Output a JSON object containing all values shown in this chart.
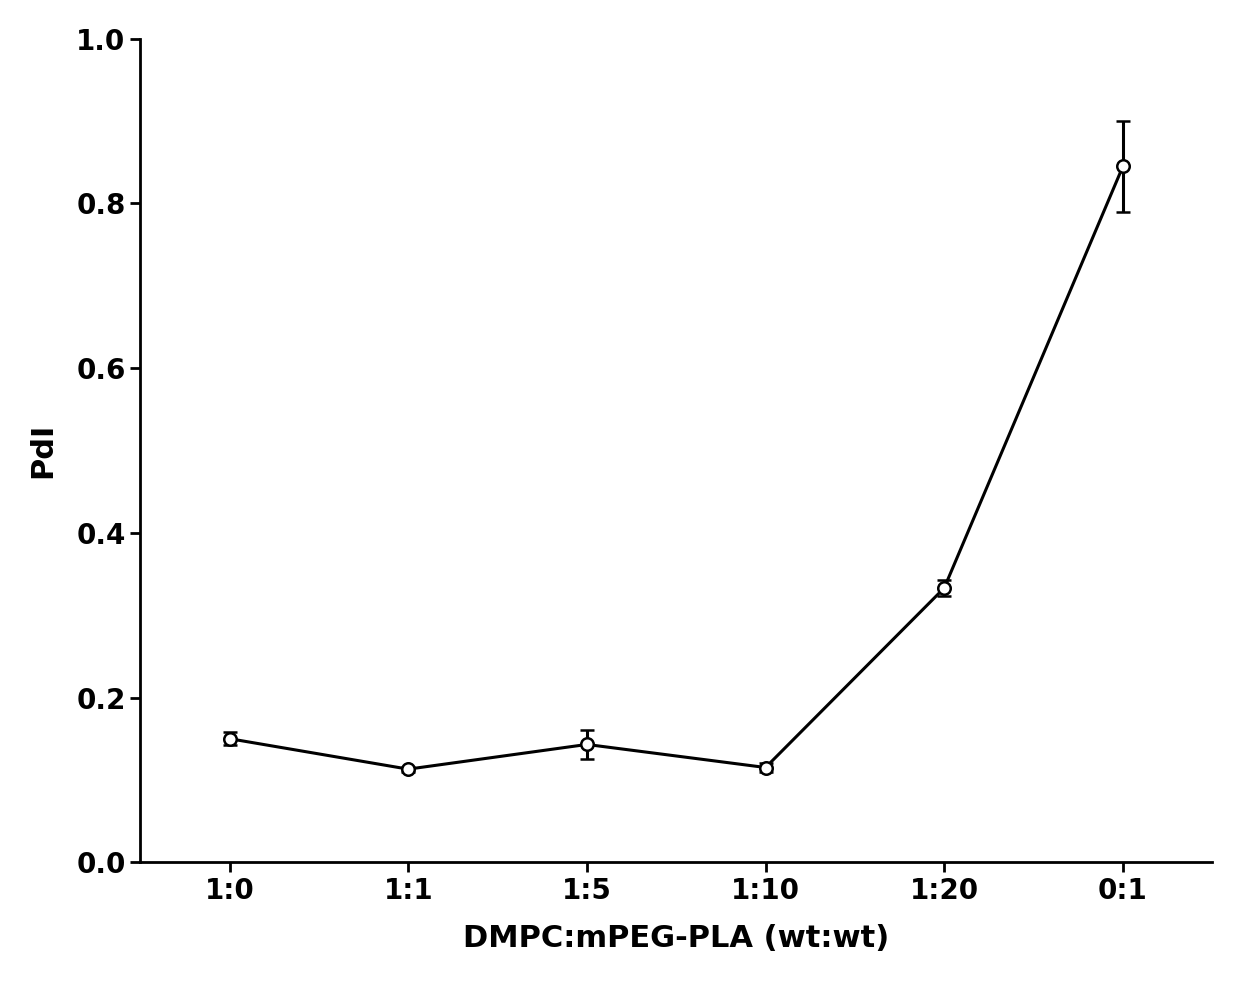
{
  "x_labels": [
    "1:0",
    "1:1",
    "1:5",
    "1:10",
    "1:20",
    "0:1"
  ],
  "x_values": [
    0,
    1,
    2,
    3,
    4,
    5
  ],
  "y_values": [
    0.15,
    0.113,
    0.143,
    0.115,
    0.333,
    0.845
  ],
  "y_errors": [
    0.008,
    0.003,
    0.018,
    0.005,
    0.01,
    0.055
  ],
  "xlabel": "DMPC:mPEG-PLA (wt:wt)",
  "ylabel": "PdI",
  "ylim": [
    0.0,
    1.0
  ],
  "yticks": [
    0.0,
    0.2,
    0.4,
    0.6,
    0.8,
    1.0
  ],
  "background_color": "#ffffff",
  "line_color": "#000000",
  "marker_color": "#ffffff",
  "marker_edge_color": "#000000",
  "marker_size": 9,
  "line_width": 2.2,
  "marker_edge_width": 1.8,
  "capsize": 5,
  "label_fontsize": 22,
  "tick_fontsize": 20
}
